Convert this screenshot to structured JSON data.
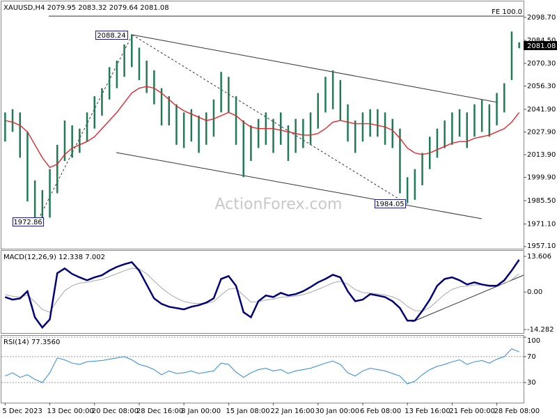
{
  "chart_data": [
    {
      "type": "ohlc",
      "title": "XAUUSD,H4",
      "open": 2079.95,
      "close": 2081.08,
      "color": "#1f7a55",
      "high": [
        2040,
        2042,
        2040,
        2028,
        1998,
        1992,
        2005,
        2020,
        2035,
        2032,
        2030,
        2040,
        2050,
        2055,
        2068,
        2072,
        2082,
        2088.24,
        2080,
        2072,
        2066,
        2055,
        2050,
        2045,
        2040,
        2042,
        2038,
        2040,
        2048,
        2065,
        2062,
        2050,
        2035,
        2032,
        2036,
        2040,
        2036,
        2040,
        2032,
        2036,
        2036,
        2040,
        2052,
        2062,
        2066,
        2060,
        2045,
        2035,
        2040,
        2042,
        2042,
        2040,
        2036,
        2030,
        2000,
        2005,
        2015,
        2025,
        2030,
        2035,
        2040,
        2042,
        2040,
        2045,
        2048,
        2045,
        2052,
        2058,
        2090,
        2083.32
      ],
      "low": [
        2022,
        2028,
        2012,
        1985,
        1975,
        1972.86,
        1975,
        1990,
        2010,
        2012,
        2015,
        2022,
        2030,
        2038,
        2048,
        2055,
        2062,
        2068,
        2060,
        2052,
        2045,
        2032,
        2032,
        2020,
        2018,
        2022,
        2015,
        2020,
        2025,
        2040,
        2040,
        2020,
        2000,
        2010,
        2018,
        2020,
        2015,
        2020,
        2010,
        2015,
        2018,
        2020,
        2030,
        2040,
        2042,
        2035,
        2022,
        2015,
        2022,
        2025,
        2025,
        2020,
        2018,
        1990,
        1984.05,
        1986,
        1995,
        2005,
        2012,
        2018,
        2020,
        2025,
        2018,
        2025,
        2028,
        2025,
        2032,
        2040,
        2060,
        2079.64
      ],
      "ma": {
        "color": "#e3262a",
        "values": [
          2035,
          2034,
          2032,
          2028,
          2020,
          2012,
          2006,
          2008,
          2014,
          2018,
          2020,
          2022,
          2025,
          2030,
          2035,
          2040,
          2046,
          2052,
          2055,
          2056,
          2055,
          2052,
          2048,
          2044,
          2041,
          2039,
          2037,
          2035,
          2036,
          2038,
          2040,
          2038,
          2034,
          2031,
          2030,
          2030,
          2030,
          2029,
          2028,
          2027,
          2026,
          2026,
          2027,
          2030,
          2034,
          2035,
          2034,
          2033,
          2033,
          2033,
          2032,
          2031,
          2029,
          2024,
          2018,
          2015,
          2014,
          2015,
          2017,
          2019,
          2021,
          2022,
          2022,
          2024,
          2025,
          2026,
          2028,
          2030,
          2034,
          2040
        ]
      },
      "ylim": [
        1955.8,
        2107.3
      ],
      "yticks": [
        {
          "value": 2098.7,
          "label": "2098.70"
        },
        {
          "value": 2084.5,
          "label": "2084.50"
        },
        {
          "value": 2070.3,
          "label": "2070.30"
        },
        {
          "value": 2056.3,
          "label": "2056.30"
        },
        {
          "value": 2041.9,
          "label": "2041.90"
        },
        {
          "value": 2027.9,
          "label": "2027.90"
        },
        {
          "value": 2013.9,
          "label": "2013.90"
        },
        {
          "value": 1999.9,
          "label": "1999.90"
        },
        {
          "value": 1985.5,
          "label": "1985.50"
        },
        {
          "value": 1971.1,
          "label": "1971.10"
        },
        {
          "value": 1957.1,
          "label": "1957.10"
        }
      ],
      "annotations": [
        {
          "text": "FE 100.0",
          "value": 2099.5
        }
      ],
      "watermark": "ActionForex.com"
    },
    {
      "type": "line",
      "title": "MACD(12,26,9)",
      "series": [
        {
          "color": "#00007a",
          "values": [
            -1.9,
            -2.9,
            -2.4,
            0.3,
            -9.6,
            -13.5,
            -10.4,
            7.2,
            9.0,
            6.9,
            5.6,
            4.5,
            5.6,
            6.4,
            8.2,
            9.6,
            10.6,
            11.4,
            8.2,
            2.9,
            -2.4,
            -4.5,
            -5.6,
            -6.1,
            -6.6,
            -5.6,
            -5.0,
            -4.0,
            -2.4,
            5.0,
            6.1,
            2.4,
            -7.7,
            -9.6,
            -3.5,
            -1.3,
            -1.9,
            -0.3,
            -1.3,
            -0.8,
            0.3,
            1.9,
            3.7,
            5.0,
            6.6,
            5.6,
            0.3,
            -3.5,
            -2.9,
            -0.8,
            -1.3,
            -1.9,
            -3.5,
            -6.1,
            -10.9,
            -10.9,
            -7.2,
            -2.9,
            2.4,
            5.0,
            5.6,
            4.5,
            2.9,
            3.7,
            2.9,
            2.4,
            2.4,
            4.5,
            8.2,
            12.338
          ]
        },
        {
          "color": "#a8a8a8",
          "values": [
            -1.0,
            -1.6,
            -1.9,
            -1.2,
            -3.7,
            -6.6,
            -7.7,
            -3.2,
            0.5,
            2.4,
            3.4,
            3.7,
            4.3,
            4.9,
            5.9,
            7.0,
            8.1,
            9.1,
            8.8,
            7.0,
            4.2,
            1.6,
            -0.6,
            -2.3,
            -3.6,
            -4.2,
            -4.4,
            -4.3,
            -3.7,
            -1.1,
            1.1,
            1.5,
            -1.3,
            -3.8,
            -3.7,
            -3.0,
            -2.7,
            -2.0,
            -1.8,
            -1.5,
            -1.0,
            -0.1,
            1.0,
            2.2,
            3.5,
            4.1,
            3.0,
            1.0,
            -0.2,
            -0.4,
            -0.7,
            -1.1,
            -1.8,
            -3.1,
            -5.4,
            -7.1,
            -7.2,
            -5.9,
            -3.4,
            -0.9,
            1.0,
            2.0,
            2.3,
            2.7,
            2.8,
            2.7,
            2.6,
            3.2,
            4.7,
            7.002
          ]
        }
      ],
      "ylim": [
        -15.61,
        15.73
      ],
      "yticks": [
        13.606,
        {
          "value": 0,
          "label": "0.00"
        },
        -14.282
      ]
    },
    {
      "type": "line",
      "title": "RSI(14)",
      "color": "#2b8ae0",
      "last_value_label": "77.3560",
      "values": [
        40,
        45,
        38,
        42,
        35,
        30,
        45,
        68,
        65,
        60,
        58,
        62,
        63,
        64,
        66,
        68,
        70,
        65,
        58,
        55,
        50,
        42,
        48,
        44,
        45,
        48,
        44,
        46,
        48,
        60,
        58,
        46,
        38,
        45,
        50,
        52,
        48,
        50,
        44,
        48,
        50,
        52,
        56,
        60,
        63,
        58,
        45,
        40,
        48,
        52,
        50,
        48,
        44,
        40,
        28,
        32,
        42,
        50,
        55,
        58,
        62,
        65,
        58,
        62,
        64,
        60,
        66,
        70,
        82,
        77.356
      ],
      "categories": [
        "5 Dec 2023",
        null,
        null,
        null,
        null,
        null,
        "13 Dec 00:00",
        null,
        null,
        null,
        null,
        null,
        "20 Dec 08:00",
        null,
        null,
        null,
        null,
        null,
        "28 Dec 16:00",
        null,
        null,
        null,
        null,
        null,
        "8 Jan 00:00",
        null,
        null,
        null,
        null,
        null,
        "15 Jan 08:00",
        null,
        null,
        null,
        null,
        null,
        "22 Jan 16:00",
        null,
        null,
        null,
        null,
        null,
        "30 Jan 00:00",
        null,
        null,
        null,
        null,
        null,
        "6 Feb 08:00",
        null,
        null,
        null,
        null,
        null,
        "13 Feb 16:00",
        null,
        null,
        null,
        null,
        null,
        "21 Feb 00:00",
        null,
        null,
        null,
        null,
        null,
        "28 Feb 08:00",
        null,
        null,
        null
      ],
      "ylim": [
        0,
        100
      ],
      "yticks": [
        100,
        70,
        30
      ],
      "grid": true
    }
  ]
}
